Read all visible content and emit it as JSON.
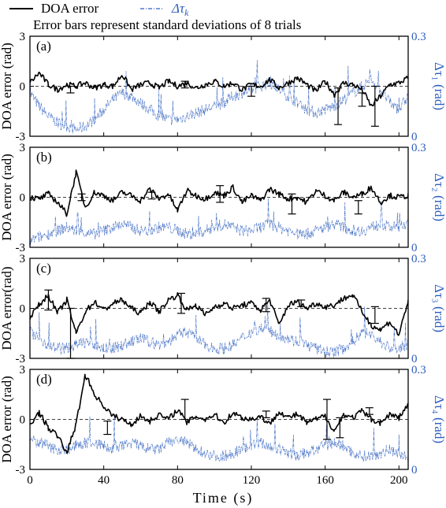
{
  "legend": {
    "entries": [
      {
        "label": "DOA error",
        "color": "#000000",
        "style": "solid"
      },
      {
        "label": "Δτ",
        "subscript": "k",
        "color": "#2f5fbf",
        "style": "dashdot"
      }
    ],
    "note": "Error bars represent standard deviations of 8 trials"
  },
  "xaxis": {
    "label": "Time (s)",
    "ticks": [
      "0",
      "40",
      "80",
      "120",
      "160",
      "200"
    ],
    "range": [
      0,
      205
    ]
  },
  "chart_data": [
    {
      "type": "line",
      "panel": "(a)",
      "ylabel": "DOA error (rad)",
      "ylim": [
        -3,
        3
      ],
      "yticks": [
        "3",
        "0",
        "-3"
      ],
      "right_ylabel": "Δτ₁ (rad)",
      "right_ylim": [
        0,
        0.3
      ],
      "right_yticks": [
        "0.3",
        "0"
      ],
      "series": [
        {
          "name": "DOA error",
          "axis": "left",
          "x": [
            0,
            5,
            10,
            15,
            20,
            25,
            30,
            35,
            40,
            45,
            50,
            55,
            60,
            65,
            70,
            75,
            80,
            85,
            90,
            95,
            100,
            105,
            110,
            115,
            120,
            125,
            130,
            135,
            140,
            145,
            150,
            155,
            160,
            165,
            170,
            175,
            180,
            185,
            190,
            195,
            200,
            205
          ],
          "y": [
            0.2,
            0.8,
            0.1,
            -0.2,
            0.1,
            0.0,
            0.2,
            -0.1,
            0.1,
            0.0,
            0.7,
            -0.2,
            0.1,
            0.2,
            -0.1,
            0.3,
            0.0,
            0.2,
            -0.1,
            0.1,
            0.3,
            0.0,
            0.2,
            -0.2,
            0.1,
            0.0,
            0.4,
            -0.1,
            0.2,
            0.5,
            0.1,
            -0.3,
            0.3,
            -0.5,
            0.2,
            0.1,
            -0.2,
            -1.2,
            -0.6,
            0.1,
            0.2,
            0.5
          ]
        },
        {
          "name": "Δτ₁",
          "axis": "right",
          "x": [
            0,
            5,
            10,
            15,
            20,
            25,
            30,
            35,
            40,
            45,
            50,
            55,
            60,
            65,
            70,
            75,
            80,
            85,
            90,
            95,
            100,
            105,
            110,
            115,
            120,
            125,
            130,
            135,
            140,
            145,
            150,
            155,
            160,
            165,
            170,
            175,
            180,
            185,
            190,
            195,
            200,
            205
          ],
          "y": [
            0.13,
            0.09,
            0.06,
            0.04,
            0.03,
            0.02,
            0.03,
            0.05,
            0.08,
            0.11,
            0.13,
            0.12,
            0.1,
            0.08,
            0.06,
            0.05,
            0.05,
            0.06,
            0.07,
            0.08,
            0.09,
            0.1,
            0.12,
            0.13,
            0.14,
            0.15,
            0.16,
            0.14,
            0.12,
            0.1,
            0.08,
            0.07,
            0.08,
            0.09,
            0.11,
            0.13,
            0.15,
            0.17,
            0.14,
            0.1,
            0.08,
            0.12
          ]
        }
      ],
      "error_bars": [
        {
          "x": 22,
          "y": -0.2,
          "sd": 0.2
        },
        {
          "x": 84,
          "y": 0.1,
          "sd": 0.2
        },
        {
          "x": 120,
          "y": -0.3,
          "sd": 0.3
        },
        {
          "x": 167,
          "y": -1.2,
          "sd": 1.1
        },
        {
          "x": 180,
          "y": -0.8,
          "sd": 0.4
        },
        {
          "x": 187,
          "y": -1.2,
          "sd": 1.2
        }
      ]
    },
    {
      "type": "line",
      "panel": "(b)",
      "ylabel": "DOA error (rad)",
      "ylim": [
        -3,
        3
      ],
      "yticks": [
        "3",
        "0",
        "-3"
      ],
      "right_ylabel": "Δτ₂ (rad)",
      "right_ylim": [
        0,
        0.3
      ],
      "right_yticks": [
        "0.3",
        "0"
      ],
      "series": [
        {
          "name": "DOA error",
          "axis": "left",
          "x": [
            0,
            5,
            10,
            15,
            20,
            25,
            30,
            35,
            40,
            45,
            50,
            55,
            60,
            65,
            70,
            75,
            80,
            85,
            90,
            95,
            100,
            105,
            110,
            115,
            120,
            125,
            130,
            135,
            140,
            145,
            150,
            155,
            160,
            165,
            170,
            175,
            180,
            185,
            190,
            195,
            200,
            205
          ],
          "y": [
            0.0,
            -0.1,
            0.2,
            -0.3,
            -1.0,
            1.5,
            -0.6,
            0.3,
            0.1,
            -0.2,
            0.3,
            0.1,
            -0.2,
            0.5,
            -0.1,
            0.2,
            -0.8,
            0.4,
            0.1,
            -0.1,
            0.3,
            0.1,
            0.6,
            -0.3,
            0.1,
            -0.2,
            0.5,
            0.2,
            -0.1,
            0.0,
            -0.3,
            0.4,
            0.1,
            -0.2,
            0.3,
            0.0,
            0.2,
            0.6,
            -0.3,
            0.1,
            0.0,
            0.1
          ]
        },
        {
          "name": "Δτ₂",
          "axis": "right",
          "x": [
            0,
            5,
            10,
            15,
            20,
            25,
            30,
            35,
            40,
            45,
            50,
            55,
            60,
            65,
            70,
            75,
            80,
            85,
            90,
            95,
            100,
            105,
            110,
            115,
            120,
            125,
            130,
            135,
            140,
            145,
            150,
            155,
            160,
            165,
            170,
            175,
            180,
            185,
            190,
            195,
            200,
            205
          ],
          "y": [
            0.02,
            0.03,
            0.04,
            0.05,
            0.06,
            0.05,
            0.04,
            0.04,
            0.05,
            0.06,
            0.07,
            0.06,
            0.05,
            0.05,
            0.06,
            0.06,
            0.05,
            0.04,
            0.04,
            0.05,
            0.06,
            0.07,
            0.06,
            0.05,
            0.05,
            0.06,
            0.07,
            0.06,
            0.05,
            0.04,
            0.04,
            0.05,
            0.06,
            0.07,
            0.06,
            0.05,
            0.05,
            0.06,
            0.07,
            0.06,
            0.06,
            0.07
          ]
        }
      ],
      "error_bars": [
        {
          "x": 28,
          "y": 0.0,
          "sd": 0.2
        },
        {
          "x": 66,
          "y": 0.1,
          "sd": 0.2
        },
        {
          "x": 103,
          "y": 0.2,
          "sd": 0.5
        },
        {
          "x": 142,
          "y": -0.4,
          "sd": 0.6
        },
        {
          "x": 178,
          "y": -0.6,
          "sd": 0.4
        }
      ]
    },
    {
      "type": "line",
      "panel": "(c)",
      "ylabel": "DOA error(rad)",
      "ylim": [
        -3,
        3
      ],
      "yticks": [
        "3",
        "0",
        "-3"
      ],
      "right_ylabel": "Δτ₃ (rad)",
      "right_ylim": [
        0,
        0.3
      ],
      "right_yticks": [
        "0.3",
        "0"
      ],
      "series": [
        {
          "name": "DOA error",
          "axis": "left",
          "x": [
            0,
            5,
            10,
            15,
            20,
            25,
            30,
            35,
            40,
            45,
            50,
            55,
            60,
            65,
            70,
            75,
            80,
            85,
            90,
            95,
            100,
            105,
            110,
            115,
            120,
            125,
            130,
            135,
            140,
            145,
            150,
            155,
            160,
            165,
            170,
            175,
            180,
            185,
            190,
            195,
            200,
            205
          ],
          "y": [
            -0.5,
            0.2,
            0.8,
            -0.3,
            0.5,
            -1.5,
            -0.2,
            0.4,
            -0.1,
            0.3,
            0.5,
            0.0,
            -0.3,
            0.4,
            -0.2,
            0.5,
            0.8,
            -0.1,
            0.2,
            -0.4,
            0.1,
            0.3,
            0.0,
            0.2,
            0.3,
            -0.1,
            0.5,
            -1.0,
            0.2,
            0.4,
            0.0,
            0.3,
            0.1,
            0.2,
            0.6,
            0.8,
            -0.2,
            -1.0,
            -1.3,
            -0.8,
            -1.6,
            0.5
          ]
        },
        {
          "name": "Δτ₃",
          "axis": "right",
          "x": [
            0,
            5,
            10,
            15,
            20,
            25,
            30,
            35,
            40,
            45,
            50,
            55,
            60,
            65,
            70,
            75,
            80,
            85,
            90,
            95,
            100,
            105,
            110,
            115,
            120,
            125,
            130,
            135,
            140,
            145,
            150,
            155,
            160,
            165,
            170,
            175,
            180,
            185,
            190,
            195,
            200,
            205
          ],
          "y": [
            0.08,
            0.06,
            0.04,
            0.03,
            0.03,
            0.04,
            0.05,
            0.04,
            0.03,
            0.03,
            0.04,
            0.05,
            0.06,
            0.05,
            0.04,
            0.05,
            0.07,
            0.08,
            0.06,
            0.04,
            0.03,
            0.03,
            0.04,
            0.06,
            0.08,
            0.09,
            0.08,
            0.07,
            0.06,
            0.05,
            0.04,
            0.03,
            0.02,
            0.02,
            0.03,
            0.05,
            0.08,
            0.07,
            0.05,
            0.03,
            0.03,
            0.04
          ]
        }
      ],
      "error_bars": [
        {
          "x": 10,
          "y": 0.5,
          "sd": 0.6
        },
        {
          "x": 22,
          "y": -1.5,
          "sd": 1.5
        },
        {
          "x": 82,
          "y": 0.3,
          "sd": 0.6
        },
        {
          "x": 128,
          "y": 0.2,
          "sd": 0.4
        },
        {
          "x": 147,
          "y": 0.3,
          "sd": 0.2
        },
        {
          "x": 187,
          "y": -0.4,
          "sd": 0.5
        }
      ]
    },
    {
      "type": "line",
      "panel": "(d)",
      "ylabel": "DOA error (rad)",
      "ylim": [
        -3,
        3
      ],
      "yticks": [
        "3",
        "0",
        "-3"
      ],
      "right_ylabel": "Δτ₄ (rad)",
      "right_ylim": [
        0,
        0.3
      ],
      "right_yticks": [
        "0.3",
        "0"
      ],
      "series": [
        {
          "name": "DOA error",
          "axis": "left",
          "x": [
            0,
            5,
            10,
            15,
            20,
            25,
            30,
            35,
            40,
            45,
            50,
            55,
            60,
            65,
            70,
            75,
            80,
            85,
            90,
            95,
            100,
            105,
            110,
            115,
            120,
            125,
            130,
            135,
            140,
            145,
            150,
            155,
            160,
            165,
            170,
            175,
            180,
            185,
            190,
            195,
            200,
            205
          ],
          "y": [
            -0.3,
            0.4,
            -0.5,
            -1.0,
            -2.0,
            -0.3,
            2.7,
            1.5,
            0.8,
            0.2,
            0.0,
            -0.3,
            0.2,
            -0.1,
            0.3,
            0.0,
            0.6,
            -0.2,
            0.2,
            0.0,
            0.3,
            -0.2,
            0.4,
            0.1,
            0.0,
            0.2,
            -0.3,
            0.5,
            0.1,
            0.3,
            -0.2,
            0.0,
            0.2,
            -0.7,
            0.3,
            0.1,
            0.5,
            0.0,
            -0.2,
            0.3,
            0.1,
            0.9
          ]
        },
        {
          "name": "Δτ₄",
          "axis": "right",
          "x": [
            0,
            5,
            10,
            15,
            20,
            25,
            30,
            35,
            40,
            45,
            50,
            55,
            60,
            65,
            70,
            75,
            80,
            85,
            90,
            95,
            100,
            105,
            110,
            115,
            120,
            125,
            130,
            135,
            140,
            145,
            150,
            155,
            160,
            165,
            170,
            175,
            180,
            185,
            190,
            195,
            200,
            205
          ],
          "y": [
            0.09,
            0.08,
            0.07,
            0.06,
            0.06,
            0.07,
            0.08,
            0.08,
            0.07,
            0.06,
            0.07,
            0.08,
            0.07,
            0.06,
            0.06,
            0.08,
            0.09,
            0.08,
            0.06,
            0.05,
            0.04,
            0.04,
            0.05,
            0.06,
            0.07,
            0.08,
            0.07,
            0.06,
            0.05,
            0.04,
            0.05,
            0.06,
            0.07,
            0.08,
            0.07,
            0.05,
            0.04,
            0.04,
            0.05,
            0.06,
            0.05,
            0.03
          ]
        }
      ],
      "error_bars": [
        {
          "x": 42,
          "y": -0.5,
          "sd": 0.4
        },
        {
          "x": 84,
          "y": 0.6,
          "sd": 0.6
        },
        {
          "x": 128,
          "y": 0.3,
          "sd": 0.2
        },
        {
          "x": 161,
          "y": 0.0,
          "sd": 1.2
        },
        {
          "x": 168,
          "y": -0.5,
          "sd": 0.6
        },
        {
          "x": 184,
          "y": 0.5,
          "sd": 0.2
        }
      ]
    }
  ]
}
